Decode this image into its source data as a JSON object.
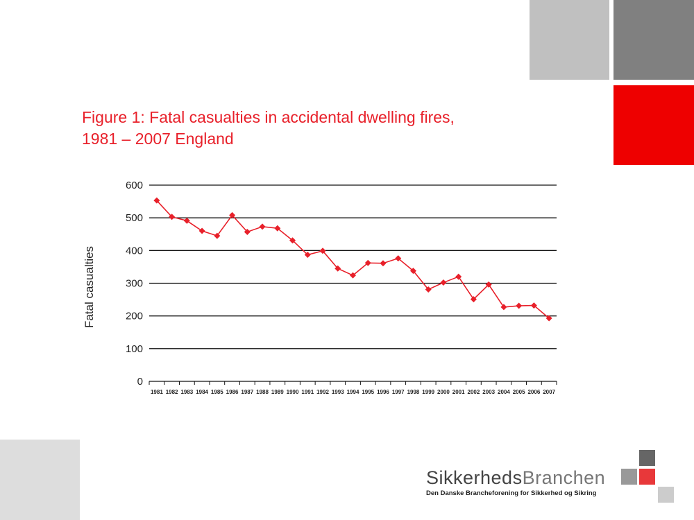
{
  "chart_data": {
    "type": "line",
    "title_lines": [
      "Figure 1: Fatal casualties in accidental dwelling fires,",
      "1981 – 2007 England"
    ],
    "ylabel": "Fatal casualties",
    "xlabel": "",
    "ylim": [
      0,
      600
    ],
    "yticks": [
      0,
      100,
      200,
      300,
      400,
      500,
      600
    ],
    "grid": true,
    "legend": "none",
    "line_color": "#e8202a",
    "categories": [
      "1981",
      "1982",
      "1983",
      "1984",
      "1985",
      "1986",
      "1987",
      "1988",
      "1989",
      "1990",
      "1991",
      "1992",
      "1993",
      "1994",
      "1995",
      "1996",
      "1997",
      "1998",
      "1999",
      "2000",
      "2001",
      "2002",
      "2003",
      "2004",
      "2005",
      "2006",
      "2007"
    ],
    "series": [
      {
        "values": [
          553,
          503,
          491,
          460,
          445,
          508,
          457,
          473,
          468,
          431,
          387,
          399,
          345,
          324,
          362,
          361,
          376,
          338,
          281,
          302,
          320,
          251,
          296,
          227,
          231,
          232,
          193
        ]
      }
    ]
  },
  "logo": {
    "name_part1": "Sikkerheds",
    "name_part2": "Branchen",
    "tagline": "Den Danske Brancheforening for Sikkerhed og Sikring",
    "dark": "#666666",
    "light": "#999999",
    "red": "#e8383a",
    "pale": "#cccccc"
  },
  "decor": {
    "gray_light": "#c0c0c0",
    "gray_dark": "#808080",
    "red": "#ee0000",
    "gray_pale": "#dddddd"
  }
}
